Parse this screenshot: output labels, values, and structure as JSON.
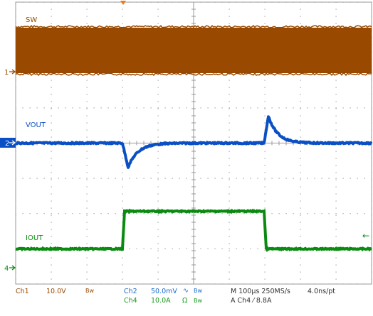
{
  "channels": [
    {
      "name": "SW",
      "marker": "1",
      "color": "#9a4a00"
    },
    {
      "name": "VOUT",
      "marker": "2",
      "color": "#0a4fc4"
    },
    {
      "name": "IOUT",
      "marker": "4",
      "color": "#0a8a10"
    }
  ],
  "trigger_marker": "←",
  "status": {
    "ch1": "Ch1",
    "ch1_scale": "10.0V",
    "ch1_bw": "Bw",
    "ch2": "Ch2",
    "ch2_scale": "50.0mV",
    "ch2_coupling": "∿",
    "ch2_bw": "Bw",
    "ch4": "Ch4",
    "ch4_scale": "10.0A",
    "ch4_coupling": "Ω",
    "ch4_bw": "Bw",
    "timebase": "M 100µs 250MS/s",
    "resolution": "4.0ns/pt",
    "trigger": "A  Ch4  ⁄  8.8A"
  },
  "colors": {
    "grid": "#9a9a9a",
    "ch1": "#9a4a00",
    "ch2": "#0a4fc4",
    "ch4": "#0a8a10",
    "trigger": "#f07a20",
    "ch2_status": "#1a6ad0",
    "ch4_status": "#1a9a20"
  }
}
